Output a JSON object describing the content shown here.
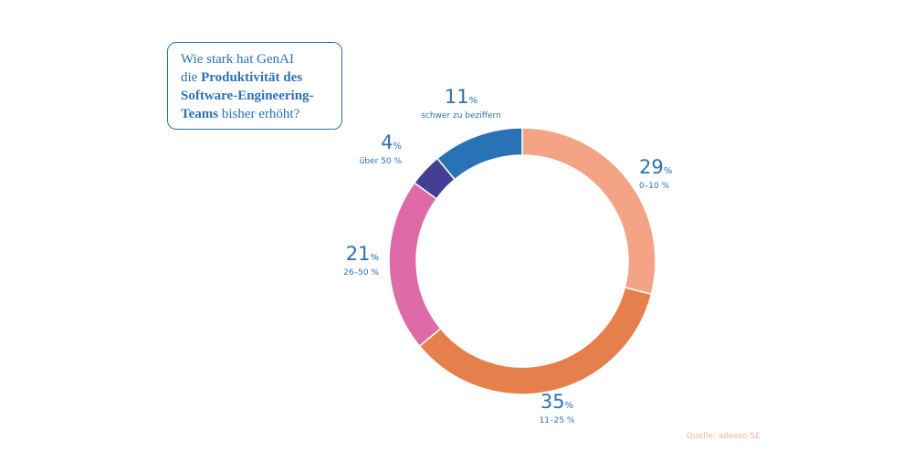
{
  "question": {
    "line1": "Wie stark hat GenAI",
    "line2_prefix": "die ",
    "line2_bold": "Produktivität des",
    "line3_bold": "Software-Engineering-",
    "line4_bold": "Teams",
    "line4_suffix": " bisher erhöht?"
  },
  "source": "Quelle: adesso SE",
  "chart_data": {
    "type": "pie",
    "donut": true,
    "categories": [
      "0–10 %",
      "11–25 %",
      "26–50 %",
      "über 50 %",
      "schwer zu beziffern"
    ],
    "values": [
      29,
      35,
      21,
      4,
      11
    ],
    "unit": "%",
    "colors": [
      "#f4a384",
      "#e5804c",
      "#df6aa8",
      "#453f93",
      "#2a72b6"
    ],
    "title": "Wie stark hat GenAI die Produktivität des Software-Engineering-Teams bisher erhöht?"
  }
}
